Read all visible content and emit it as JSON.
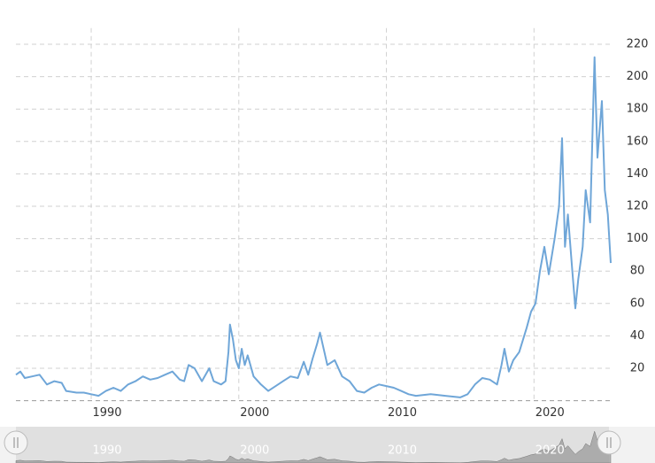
{
  "chart_data": {
    "type": "line",
    "x": [
      1984.9,
      1985.2,
      1985.5,
      1986,
      1986.5,
      1987,
      1987.5,
      1988,
      1988.3,
      1989,
      1989.5,
      1990,
      1990.5,
      1991,
      1991.5,
      1992,
      1992.5,
      1993,
      1993.5,
      1994,
      1994.5,
      1995,
      1995.5,
      1996,
      1996.3,
      1996.6,
      1997,
      1997.5,
      1998,
      1998.3,
      1998.8,
      1999.1,
      1999.3,
      1999.4,
      1999.6,
      1999.8,
      2000,
      2000.2,
      2000.4,
      2000.6,
      2001,
      2001.5,
      2002,
      2002.5,
      2003,
      2003.5,
      2004,
      2004.4,
      2004.7,
      2005,
      2005.3,
      2005.5,
      2005.8,
      2006,
      2006.5,
      2007,
      2007.5,
      2008,
      2008.5,
      2009,
      2009.5,
      2010,
      2010.5,
      2011,
      2011.5,
      2012,
      2013,
      2014,
      2015,
      2015.5,
      2016,
      2016.5,
      2017,
      2017.5,
      2017.8,
      2018,
      2018.3,
      2018.6,
      2019,
      2019.5,
      2019.8,
      2020.1,
      2020.4,
      2020.7,
      2021,
      2021.4,
      2021.7,
      2021.9,
      2022.1,
      2022.3,
      2022.6,
      2022.8,
      2023,
      2023.3,
      2023.5,
      2023.8,
      2024.1,
      2024.3,
      2024.6,
      2024.8,
      2025,
      2025.2
    ],
    "series": [
      {
        "color": "#6fa6d8",
        "values": [
          16,
          18,
          14,
          15,
          16,
          10,
          12,
          11,
          6,
          5,
          5,
          4,
          3,
          6,
          8,
          6,
          10,
          12,
          15,
          13,
          14,
          16,
          18,
          13,
          12,
          22,
          20,
          12,
          20,
          12,
          10,
          12,
          30,
          47,
          38,
          25,
          20,
          32,
          22,
          28,
          15,
          10,
          6,
          9,
          12,
          15,
          14,
          24,
          16,
          26,
          35,
          42,
          30,
          22,
          25,
          15,
          12,
          6,
          5,
          8,
          10,
          9,
          8,
          6,
          4,
          3,
          4,
          3,
          2,
          4,
          10,
          14,
          13,
          10,
          22,
          32,
          18,
          25,
          30,
          45,
          55,
          60,
          80,
          95,
          78,
          100,
          120,
          162,
          95,
          115,
          80,
          57,
          75,
          95,
          130,
          110,
          212,
          150,
          185,
          130,
          115,
          85
        ]
      }
    ],
    "xlim": [
      1984.9,
      2025.2
    ],
    "xticks": [
      1990,
      2000,
      2010,
      2020
    ],
    "ylim": [
      0,
      230
    ],
    "yticks": [
      20,
      40,
      60,
      80,
      100,
      120,
      140,
      160,
      180,
      200,
      220
    ],
    "grid": true
  }
}
